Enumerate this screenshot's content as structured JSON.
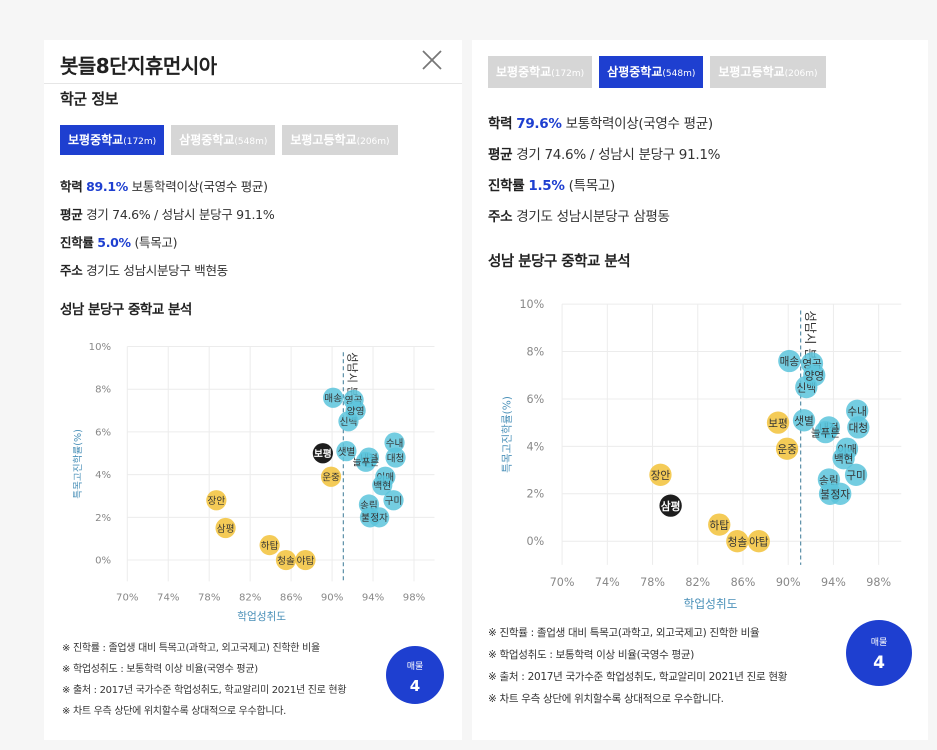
{
  "left": {
    "title": "봇들8단지휴먼시아",
    "section_title": "학군 정보",
    "tabs": [
      {
        "name": "보평중학교",
        "dist": "(172m)",
        "active": true
      },
      {
        "name": "삼평중학교",
        "dist": "(548m)",
        "active": false
      },
      {
        "name": "보평고등학교",
        "dist": "(206m)",
        "active": false
      }
    ],
    "info": {
      "academic_label": "학력",
      "academic_value": "89.1%",
      "academic_desc": "보통학력이상(국영수 평균)",
      "avg_label": "평균",
      "avg_desc": "경기 74.6% / 성남시 분당구 91.1%",
      "advance_label": "진학률",
      "advance_value": "5.0%",
      "advance_desc": "(특목고)",
      "addr_label": "주소",
      "addr_desc": "경기도 성남시분당구 백현동"
    },
    "analysis_title": "성남 분당구 중학교 분석",
    "notes": [
      "※ 진학률 : 졸업생 대비 특목고(과학고, 외고국제고) 진학한 비율",
      "※ 학업성취도 : 보통학력 이상 비율(국영수 평균)",
      "※ 출처 : 2017년 국가수준 학업성취도, 학교알리미 2021년 진로 현황",
      "※ 차트 우측 상단에 위치할수록 상대적으로 우수합니다."
    ],
    "sale_label": "매물",
    "sale_count": "4"
  },
  "right": {
    "tabs": [
      {
        "name": "보평중학교",
        "dist": "(172m)",
        "active": false
      },
      {
        "name": "삼평중학교",
        "dist": "(548m)",
        "active": true
      },
      {
        "name": "보평고등학교",
        "dist": "(206m)",
        "active": false
      }
    ],
    "info": {
      "academic_label": "학력",
      "academic_value": "79.6%",
      "academic_desc": "보통학력이상(국영수 평균)",
      "avg_label": "평균",
      "avg_desc": "경기 74.6% / 성남시 분당구 91.1%",
      "advance_label": "진학률",
      "advance_value": "1.5%",
      "advance_desc": "(특목고)",
      "addr_label": "주소",
      "addr_desc": "경기도 성남시분당구 삼평동"
    },
    "analysis_title": "성남 분당구 중학교 분석",
    "notes": [
      "※ 진학률 : 졸업생 대비 특목고(과학고, 외고국제고) 진학한 비율",
      "※ 학업성취도 : 보통학력 이상 비율(국영수 평균)",
      "※ 출처 : 2017년 국가수준 학업성취도, 학교알리미 2021년 진로 현황",
      "※ 차트 우측 상단에 위치할수록 상대적으로 우수합니다."
    ],
    "sale_label": "매물",
    "sale_count": "4"
  },
  "colors": {
    "accent": "#1e3fd0",
    "tab_inactive": "#d6d6d6",
    "bubble_yellow": "#f3c84e",
    "bubble_blue": "#5cc4dc",
    "bubble_selected": "#111111",
    "ref_line": "#5b8fa8"
  },
  "chart_data": [
    {
      "type": "scatter",
      "xlabel": "학업성취도",
      "ylabel": "특목고진학률(%)",
      "xlim": [
        70,
        100
      ],
      "ylim": [
        -1,
        10
      ],
      "xticks": [
        "70%",
        "74%",
        "78%",
        "82%",
        "86%",
        "90%",
        "94%",
        "98%"
      ],
      "yticks": [
        "0%",
        "2%",
        "4%",
        "6%",
        "8%",
        "10%"
      ],
      "ref_line": {
        "x": 91.1,
        "label": "성남시 분"
      },
      "points": [
        {
          "label": "매송",
          "x": 90.1,
          "y": 7.6,
          "group": "blue"
        },
        {
          "label": "영곡",
          "x": 92.1,
          "y": 7.5,
          "group": "blue"
        },
        {
          "label": "신백",
          "x": 91.6,
          "y": 6.5,
          "group": "blue"
        },
        {
          "label": "양영",
          "x": 92.3,
          "y": 7.0,
          "group": "blue"
        },
        {
          "label": "보평",
          "x": 89.1,
          "y": 5.0,
          "group": "selected"
        },
        {
          "label": "샛별",
          "x": 91.4,
          "y": 5.1,
          "group": "blue"
        },
        {
          "label": "내정",
          "x": 93.6,
          "y": 4.8,
          "group": "blue"
        },
        {
          "label": "늘푸른",
          "x": 93.3,
          "y": 4.6,
          "group": "blue"
        },
        {
          "label": "수내",
          "x": 96.1,
          "y": 5.5,
          "group": "blue"
        },
        {
          "label": "대청",
          "x": 96.2,
          "y": 4.8,
          "group": "blue"
        },
        {
          "label": "운중",
          "x": 89.9,
          "y": 3.9,
          "group": "yellow"
        },
        {
          "label": "이매",
          "x": 95.2,
          "y": 3.9,
          "group": "blue"
        },
        {
          "label": "백현",
          "x": 94.9,
          "y": 3.5,
          "group": "blue"
        },
        {
          "label": "송림",
          "x": 93.6,
          "y": 2.6,
          "group": "blue"
        },
        {
          "label": "구미",
          "x": 96.0,
          "y": 2.8,
          "group": "blue"
        },
        {
          "label": "불곡",
          "x": 93.7,
          "y": 2.0,
          "group": "blue"
        },
        {
          "label": "정자",
          "x": 94.6,
          "y": 2.0,
          "group": "blue"
        },
        {
          "label": "장안",
          "x": 78.7,
          "y": 2.8,
          "group": "yellow"
        },
        {
          "label": "삼평",
          "x": 79.6,
          "y": 1.5,
          "group": "yellow"
        },
        {
          "label": "하탑",
          "x": 83.9,
          "y": 0.7,
          "group": "yellow"
        },
        {
          "label": "청솔",
          "x": 85.5,
          "y": 0.0,
          "group": "yellow"
        },
        {
          "label": "야탑",
          "x": 87.4,
          "y": 0.0,
          "group": "yellow"
        }
      ]
    },
    {
      "type": "scatter",
      "xlabel": "학업성취도",
      "ylabel": "특목고진학률(%)",
      "xlim": [
        70,
        100
      ],
      "ylim": [
        -1,
        10
      ],
      "xticks": [
        "70%",
        "74%",
        "78%",
        "82%",
        "86%",
        "90%",
        "94%",
        "98%"
      ],
      "yticks": [
        "0%",
        "2%",
        "4%",
        "6%",
        "8%",
        "10%"
      ],
      "ref_line": {
        "x": 91.1,
        "label": "성남시 분"
      },
      "points": [
        {
          "label": "매송",
          "x": 90.1,
          "y": 7.6,
          "group": "blue"
        },
        {
          "label": "영곡",
          "x": 92.1,
          "y": 7.5,
          "group": "blue"
        },
        {
          "label": "신백",
          "x": 91.6,
          "y": 6.5,
          "group": "blue"
        },
        {
          "label": "양영",
          "x": 92.3,
          "y": 7.0,
          "group": "blue"
        },
        {
          "label": "보평",
          "x": 89.1,
          "y": 5.0,
          "group": "yellow"
        },
        {
          "label": "샛별",
          "x": 91.4,
          "y": 5.1,
          "group": "blue"
        },
        {
          "label": "내정",
          "x": 93.6,
          "y": 4.8,
          "group": "blue"
        },
        {
          "label": "늘푸른",
          "x": 93.3,
          "y": 4.6,
          "group": "blue"
        },
        {
          "label": "수내",
          "x": 96.1,
          "y": 5.5,
          "group": "blue"
        },
        {
          "label": "대청",
          "x": 96.2,
          "y": 4.8,
          "group": "blue"
        },
        {
          "label": "운중",
          "x": 89.9,
          "y": 3.9,
          "group": "yellow"
        },
        {
          "label": "이매",
          "x": 95.2,
          "y": 3.9,
          "group": "blue"
        },
        {
          "label": "백현",
          "x": 94.9,
          "y": 3.5,
          "group": "blue"
        },
        {
          "label": "송림",
          "x": 93.6,
          "y": 2.6,
          "group": "blue"
        },
        {
          "label": "구미",
          "x": 96.0,
          "y": 2.8,
          "group": "blue"
        },
        {
          "label": "불곡",
          "x": 93.7,
          "y": 2.0,
          "group": "blue"
        },
        {
          "label": "정자",
          "x": 94.6,
          "y": 2.0,
          "group": "blue"
        },
        {
          "label": "장안",
          "x": 78.7,
          "y": 2.8,
          "group": "yellow"
        },
        {
          "label": "삼평",
          "x": 79.6,
          "y": 1.5,
          "group": "selected"
        },
        {
          "label": "하탑",
          "x": 83.9,
          "y": 0.7,
          "group": "yellow"
        },
        {
          "label": "청솔",
          "x": 85.5,
          "y": 0.0,
          "group": "yellow"
        },
        {
          "label": "야탑",
          "x": 87.4,
          "y": 0.0,
          "group": "yellow"
        }
      ]
    }
  ]
}
